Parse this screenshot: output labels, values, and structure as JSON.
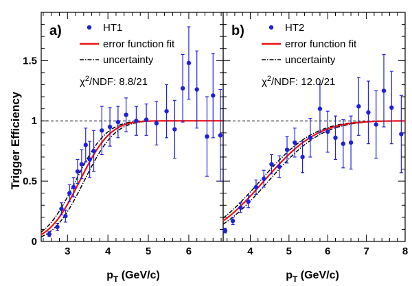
{
  "figure": {
    "ylabel": "Trigger Efficiency",
    "xlabel_main": "p",
    "xlabel_sub": "T",
    "xlabel_unit": " (GeV/c)"
  },
  "chart_data": [
    {
      "type": "scatter",
      "panel_label": "a)",
      "xlim": [
        2.35,
        6.85
      ],
      "ylim": [
        0,
        1.9
      ],
      "xticks": [
        3,
        4,
        5,
        6
      ],
      "yticks": [
        0,
        0.5,
        1,
        1.5
      ],
      "ytick_labels": [
        "0",
        "0.5",
        "1",
        "1.5"
      ],
      "reference_line": 1.0,
      "legend": {
        "data": "HT1",
        "fit": "error function fit",
        "uncertainty": "uncertainty"
      },
      "chi2": {
        "symbol": "χ",
        "sup": "2",
        "text": "/NDF: 8.8/21"
      },
      "fit": {
        "mu": 3.3,
        "sigma": 0.6
      },
      "band": {
        "lower_mu": 3.41,
        "upper_mu": 3.2,
        "sigma": 0.6
      },
      "points": [
        {
          "x": 2.55,
          "y": 0.06,
          "err": 0.02
        },
        {
          "x": 2.75,
          "y": 0.12,
          "err": 0.03
        },
        {
          "x": 2.85,
          "y": 0.27,
          "err": 0.05
        },
        {
          "x": 2.95,
          "y": 0.21,
          "err": 0.05
        },
        {
          "x": 3.05,
          "y": 0.4,
          "err": 0.07
        },
        {
          "x": 3.15,
          "y": 0.45,
          "err": 0.08
        },
        {
          "x": 3.25,
          "y": 0.58,
          "err": 0.1
        },
        {
          "x": 3.35,
          "y": 0.64,
          "err": 0.12
        },
        {
          "x": 3.45,
          "y": 0.8,
          "err": 0.14
        },
        {
          "x": 3.55,
          "y": 0.68,
          "err": 0.15
        },
        {
          "x": 3.65,
          "y": 0.75,
          "err": 0.17
        },
        {
          "x": 3.85,
          "y": 0.92,
          "err": 0.2
        },
        {
          "x": 4.05,
          "y": 0.95,
          "err": 0.16
        },
        {
          "x": 4.25,
          "y": 0.99,
          "err": 0.13
        },
        {
          "x": 4.45,
          "y": 1.05,
          "err": 0.14
        },
        {
          "x": 4.7,
          "y": 1.0,
          "err": 0.12
        },
        {
          "x": 4.95,
          "y": 1.01,
          "err": 0.13
        },
        {
          "x": 5.2,
          "y": 0.98,
          "err": 0.18
        },
        {
          "x": 5.45,
          "y": 1.08,
          "err": 0.22
        },
        {
          "x": 5.65,
          "y": 0.93,
          "err": 0.24
        },
        {
          "x": 5.85,
          "y": 1.27,
          "err": 0.28
        },
        {
          "x": 6.0,
          "y": 1.48,
          "err": 0.3
        },
        {
          "x": 6.2,
          "y": 1.26,
          "err": 0.32
        },
        {
          "x": 6.45,
          "y": 0.87,
          "err": 0.33
        },
        {
          "x": 6.6,
          "y": 1.21,
          "err": 0.35
        },
        {
          "x": 6.78,
          "y": 0.88,
          "err": 0.38
        }
      ]
    },
    {
      "type": "scatter",
      "panel_label": "b)",
      "xlim": [
        3.3,
        8.0
      ],
      "ylim": [
        0,
        1.9
      ],
      "xticks": [
        4,
        5,
        6,
        7,
        8
      ],
      "yticks": [
        0,
        0.5,
        1,
        1.5
      ],
      "ytick_labels": [
        "",
        "",
        "",
        ""
      ],
      "reference_line": 1.0,
      "legend": {
        "data": "HT2",
        "fit": "error function fit",
        "uncertainty": "uncertainty"
      },
      "chi2": {
        "symbol": "χ",
        "sup": "2",
        "text": "/NDF: 12.0/21"
      },
      "fit": {
        "mu": 4.35,
        "sigma": 1.1
      },
      "band": {
        "lower_mu": 4.47,
        "upper_mu": 4.25,
        "sigma": 1.1
      },
      "points": [
        {
          "x": 3.35,
          "y": 0.09,
          "err": 0.02
        },
        {
          "x": 3.55,
          "y": 0.17,
          "err": 0.03
        },
        {
          "x": 3.75,
          "y": 0.28,
          "err": 0.04
        },
        {
          "x": 3.95,
          "y": 0.33,
          "err": 0.05
        },
        {
          "x": 4.15,
          "y": 0.45,
          "err": 0.06
        },
        {
          "x": 4.35,
          "y": 0.52,
          "err": 0.07
        },
        {
          "x": 4.55,
          "y": 0.64,
          "err": 0.08
        },
        {
          "x": 4.75,
          "y": 0.62,
          "err": 0.09
        },
        {
          "x": 4.95,
          "y": 0.76,
          "err": 0.11
        },
        {
          "x": 5.15,
          "y": 0.82,
          "err": 0.12
        },
        {
          "x": 5.35,
          "y": 0.7,
          "err": 0.13
        },
        {
          "x": 5.55,
          "y": 0.86,
          "err": 0.16
        },
        {
          "x": 5.8,
          "y": 1.1,
          "err": 0.2
        },
        {
          "x": 6.0,
          "y": 0.91,
          "err": 0.17
        },
        {
          "x": 6.2,
          "y": 0.86,
          "err": 0.18
        },
        {
          "x": 6.4,
          "y": 0.81,
          "err": 0.2
        },
        {
          "x": 6.6,
          "y": 0.82,
          "err": 0.22
        },
        {
          "x": 6.8,
          "y": 1.12,
          "err": 0.24
        },
        {
          "x": 7.05,
          "y": 1.07,
          "err": 0.26
        },
        {
          "x": 7.25,
          "y": 0.97,
          "err": 0.28
        },
        {
          "x": 7.45,
          "y": 1.25,
          "err": 0.3
        },
        {
          "x": 7.65,
          "y": 1.11,
          "err": 0.3
        },
        {
          "x": 7.9,
          "y": 0.89,
          "err": 0.32
        }
      ]
    }
  ]
}
